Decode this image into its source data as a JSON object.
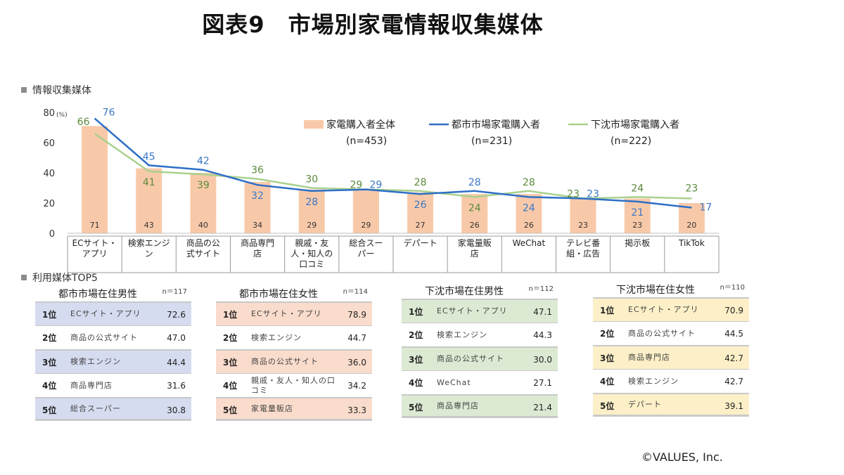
{
  "title": "図表9　市場別家電情報収集媒体",
  "section1_label": "情報収集媒体",
  "section2_label": "利用媒体TOP5",
  "credit": "©VALUES, Inc.",
  "colors": {
    "bar": "#f8c9a9",
    "urban": "#2e6fc6",
    "rural": "#a9d18e",
    "urban_text": "#3b78c5",
    "rural_text": "#5a8a3a"
  },
  "chart_data": {
    "type": "bar",
    "unit_label": "(%)",
    "categories": [
      "ECサイト・\nアプリ",
      "検索エンジ\nン",
      "商品の公\n式サイト",
      "商品専門\n店",
      "親戚・友\n人・知人の\n口コミ",
      "総合スー\nパー",
      "デパート",
      "家電量販\n店",
      "WeChat",
      "テレビ番\n組・広告",
      "掲示板",
      "TikTok"
    ],
    "ylim": [
      0,
      80
    ],
    "yticks": [
      0,
      20,
      40,
      60,
      80
    ],
    "series": [
      {
        "name": "家電購入者全体",
        "n_label": "(n=453)",
        "type": "bar",
        "values": [
          71,
          43,
          40,
          34,
          29,
          29,
          27,
          26,
          26,
          23,
          23,
          20
        ]
      },
      {
        "name": "都市市場家電購入者",
        "n_label": "(n=231)",
        "type": "line",
        "values": [
          76,
          45,
          42,
          32,
          28,
          29,
          26,
          28,
          24,
          23,
          21,
          17
        ]
      },
      {
        "name": "下沈市場家電購入者",
        "n_label": "(n=222)",
        "type": "line",
        "values": [
          66,
          41,
          39,
          36,
          30,
          29,
          28,
          24,
          28,
          23,
          24,
          23
        ]
      }
    ]
  },
  "tables": [
    {
      "title": "都市市場在住男性",
      "n": "n＝117",
      "hl": "#d6dcf0",
      "rows": [
        {
          "rank": "1位",
          "item": "ECサイト・アプリ",
          "value": "72.6"
        },
        {
          "rank": "2位",
          "item": "商品の公式サイト",
          "value": "47.0"
        },
        {
          "rank": "3位",
          "item": "検索エンジン",
          "value": "44.4"
        },
        {
          "rank": "4位",
          "item": "商品専門店",
          "value": "31.6"
        },
        {
          "rank": "5位",
          "item": "総合スーパー",
          "value": "30.8"
        }
      ]
    },
    {
      "title": "都市市場在住女性",
      "n": "n＝114",
      "hl": "#fadccc",
      "rows": [
        {
          "rank": "1位",
          "item": "ECサイト・アプリ",
          "value": "78.9"
        },
        {
          "rank": "2位",
          "item": "検索エンジン",
          "value": "44.7"
        },
        {
          "rank": "3位",
          "item": "商品の公式サイト",
          "value": "36.0"
        },
        {
          "rank": "4位",
          "item": "親戚・友人・知人の口コミ",
          "value": "34.2"
        },
        {
          "rank": "5位",
          "item": "家電量販店",
          "value": "33.3"
        }
      ]
    },
    {
      "title": "下沈市場在住男性",
      "n": "n＝112",
      "hl": "#dcead3",
      "rows": [
        {
          "rank": "1位",
          "item": "ECサイト・アプリ",
          "value": "47.1"
        },
        {
          "rank": "2位",
          "item": "検索エンジン",
          "value": "44.3"
        },
        {
          "rank": "3位",
          "item": "商品の公式サイト",
          "value": "30.0"
        },
        {
          "rank": "4位",
          "item": "WeChat",
          "value": "27.1"
        },
        {
          "rank": "5位",
          "item": "商品専門店",
          "value": "21.4"
        }
      ]
    },
    {
      "title": "下沈市場在住女性",
      "n": "n＝110",
      "hl": "#fdf0c8",
      "rows": [
        {
          "rank": "1位",
          "item": "ECサイト・アプリ",
          "value": "70.9"
        },
        {
          "rank": "2位",
          "item": "商品の公式サイト",
          "value": "44.5"
        },
        {
          "rank": "3位",
          "item": "商品専門店",
          "value": "42.7"
        },
        {
          "rank": "4位",
          "item": "検索エンジン",
          "value": "42.7"
        },
        {
          "rank": "5位",
          "item": "デパート",
          "value": "39.1"
        }
      ]
    }
  ]
}
